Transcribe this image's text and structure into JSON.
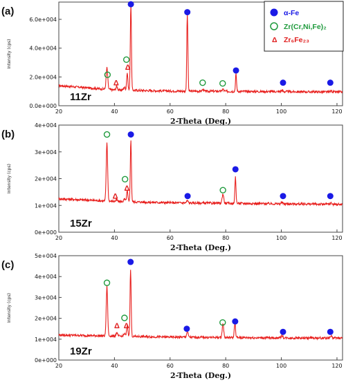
{
  "legend": {
    "items": [
      {
        "key": "afe",
        "label": "α-Fe",
        "marker": "filled-circle",
        "color": "#1a1ae6"
      },
      {
        "key": "zr",
        "label": "Zr(Cr,Ni,Fe)₂",
        "marker": "open-circle",
        "color": "#1e9a3c"
      },
      {
        "key": "zrfe",
        "label": "Zr₆Fe₂₃",
        "marker": "triangle",
        "color": "#e02020"
      }
    ]
  },
  "colors": {
    "pattern": "#e8201e",
    "axes": "#444444"
  },
  "chart_data": [
    {
      "type": "line",
      "panel_label": "(a)",
      "sample_label": "11Zr",
      "xlabel": "2-Theta (Deg.)",
      "ylabel": "Intensity (cps)",
      "xlim": [
        20,
        122
      ],
      "ylim": [
        0,
        72000
      ],
      "x_ticks": [
        "20",
        "40",
        "60",
        "80",
        "100",
        "120"
      ],
      "y_ticks": [
        {
          "v": 0,
          "label": "0.0e+000"
        },
        {
          "v": 20000,
          "label": "2.0e+004"
        },
        {
          "v": 40000,
          "label": "4.0e+004"
        },
        {
          "v": 60000,
          "label": "6.0e+004"
        }
      ],
      "baseline": [
        [
          20,
          14000
        ],
        [
          40,
          11000
        ],
        [
          60,
          10200
        ],
        [
          80,
          10000
        ],
        [
          100,
          9800
        ],
        [
          122,
          9500
        ]
      ],
      "series": [
        {
          "peaks": [
            [
              37.3,
              15000,
              0.5
            ],
            [
              40.8,
              2500,
              0.5
            ],
            [
              43.6,
              2000,
              0.5
            ],
            [
              44.6,
              12000,
              0.4
            ],
            [
              45.9,
              60000,
              0.35
            ],
            [
              66.2,
              54000,
              0.35
            ],
            [
              71.8,
              1200,
              0.5
            ],
            [
              79.0,
              1500,
              0.5
            ],
            [
              83.7,
              12000,
              0.35
            ],
            [
              100.2,
              1000,
              0.5
            ],
            [
              117.9,
              900,
              0.5
            ]
          ]
        }
      ],
      "markers": [
        {
          "phase": "afe",
          "x": 45.9,
          "y": 70500
        },
        {
          "phase": "afe",
          "x": 66.2,
          "y": 65000
        },
        {
          "phase": "afe",
          "x": 83.7,
          "y": 24500
        },
        {
          "phase": "afe",
          "x": 100.6,
          "y": 16000
        },
        {
          "phase": "afe",
          "x": 117.6,
          "y": 16000
        },
        {
          "phase": "zr",
          "x": 37.5,
          "y": 21500
        },
        {
          "phase": "zr",
          "x": 44.3,
          "y": 32000
        },
        {
          "phase": "zr",
          "x": 71.7,
          "y": 16000
        },
        {
          "phase": "zr",
          "x": 78.9,
          "y": 15500
        },
        {
          "phase": "zrfe",
          "x": 40.6,
          "y": 16000
        },
        {
          "phase": "zrfe",
          "x": 44.8,
          "y": 27000
        }
      ]
    },
    {
      "type": "line",
      "panel_label": "(b)",
      "sample_label": "15Zr",
      "xlabel": "2-Theta (Deg.)",
      "ylabel": "Intensity (cps)",
      "xlim": [
        20,
        122
      ],
      "ylim": [
        0,
        40000
      ],
      "x_ticks": [
        "20",
        "40",
        "60",
        "80",
        "100",
        "120"
      ],
      "y_ticks": [
        {
          "v": 0,
          "label": "0e+000"
        },
        {
          "v": 10000,
          "label": "1e+004"
        },
        {
          "v": 20000,
          "label": "2e+004"
        },
        {
          "v": 30000,
          "label": "3e+004"
        },
        {
          "v": 40000,
          "label": "4e+004"
        }
      ],
      "baseline": [
        [
          20,
          12500
        ],
        [
          40,
          11500
        ],
        [
          60,
          11000
        ],
        [
          80,
          10800
        ],
        [
          100,
          10600
        ],
        [
          122,
          10400
        ]
      ],
      "series": [
        {
          "peaks": [
            [
              37.3,
              22000,
              0.45
            ],
            [
              40.8,
              600,
              0.5
            ],
            [
              43.6,
              900,
              0.5
            ],
            [
              44.6,
              4000,
              0.4
            ],
            [
              45.9,
              23000,
              0.35
            ],
            [
              66.2,
              800,
              0.5
            ],
            [
              79.0,
              3500,
              0.5
            ],
            [
              83.5,
              10000,
              0.35
            ],
            [
              100.2,
              500,
              0.5
            ],
            [
              117.9,
              400,
              0.5
            ]
          ]
        }
      ],
      "markers": [
        {
          "phase": "afe",
          "x": 45.9,
          "y": 36500
        },
        {
          "phase": "afe",
          "x": 66.3,
          "y": 13500
        },
        {
          "phase": "afe",
          "x": 83.5,
          "y": 23500
        },
        {
          "phase": "afe",
          "x": 100.6,
          "y": 13500
        },
        {
          "phase": "afe",
          "x": 117.6,
          "y": 13500
        },
        {
          "phase": "zr",
          "x": 37.3,
          "y": 36500
        },
        {
          "phase": "zr",
          "x": 43.8,
          "y": 19800
        },
        {
          "phase": "zr",
          "x": 79.0,
          "y": 15700
        },
        {
          "phase": "zrfe",
          "x": 40.3,
          "y": 13500
        },
        {
          "phase": "zrfe",
          "x": 44.5,
          "y": 16500
        }
      ]
    },
    {
      "type": "line",
      "panel_label": "(c)",
      "sample_label": "19Zr",
      "xlabel": "2-Theta (Deg.)",
      "ylabel": "Intensity (cps)",
      "xlim": [
        20,
        122
      ],
      "ylim": [
        0,
        50000
      ],
      "x_ticks": [
        "20",
        "40",
        "60",
        "80",
        "100",
        "120"
      ],
      "y_ticks": [
        {
          "v": 0,
          "label": "0e+000"
        },
        {
          "v": 10000,
          "label": "1e+004"
        },
        {
          "v": 20000,
          "label": "2e+004"
        },
        {
          "v": 30000,
          "label": "3e+004"
        },
        {
          "v": 40000,
          "label": "4e+004"
        },
        {
          "v": 50000,
          "label": "5e+004"
        }
      ],
      "baseline": [
        [
          20,
          12000
        ],
        [
          40,
          11500
        ],
        [
          60,
          11000
        ],
        [
          80,
          10800
        ],
        [
          100,
          10600
        ],
        [
          122,
          10500
        ]
      ],
      "series": [
        {
          "peaks": [
            [
              37.3,
              24000,
              0.45
            ],
            [
              40.8,
              1500,
              0.5
            ],
            [
              43.6,
              1200,
              0.5
            ],
            [
              44.6,
              5000,
              0.4
            ],
            [
              45.8,
              32000,
              0.35
            ],
            [
              66.2,
              2500,
              0.5
            ],
            [
              79.0,
              7000,
              0.45
            ],
            [
              83.3,
              7000,
              0.4
            ],
            [
              100.2,
              1200,
              0.5
            ],
            [
              117.9,
              1000,
              0.5
            ]
          ]
        }
      ],
      "markers": [
        {
          "phase": "afe",
          "x": 45.8,
          "y": 47000
        },
        {
          "phase": "afe",
          "x": 66.0,
          "y": 15000
        },
        {
          "phase": "afe",
          "x": 83.4,
          "y": 18500
        },
        {
          "phase": "afe",
          "x": 100.6,
          "y": 13500
        },
        {
          "phase": "afe",
          "x": 117.6,
          "y": 13500
        },
        {
          "phase": "zr",
          "x": 37.3,
          "y": 37000
        },
        {
          "phase": "zr",
          "x": 43.6,
          "y": 20200
        },
        {
          "phase": "zr",
          "x": 78.9,
          "y": 18000
        },
        {
          "phase": "zrfe",
          "x": 40.9,
          "y": 16500
        },
        {
          "phase": "zrfe",
          "x": 44.3,
          "y": 16500
        }
      ]
    }
  ]
}
